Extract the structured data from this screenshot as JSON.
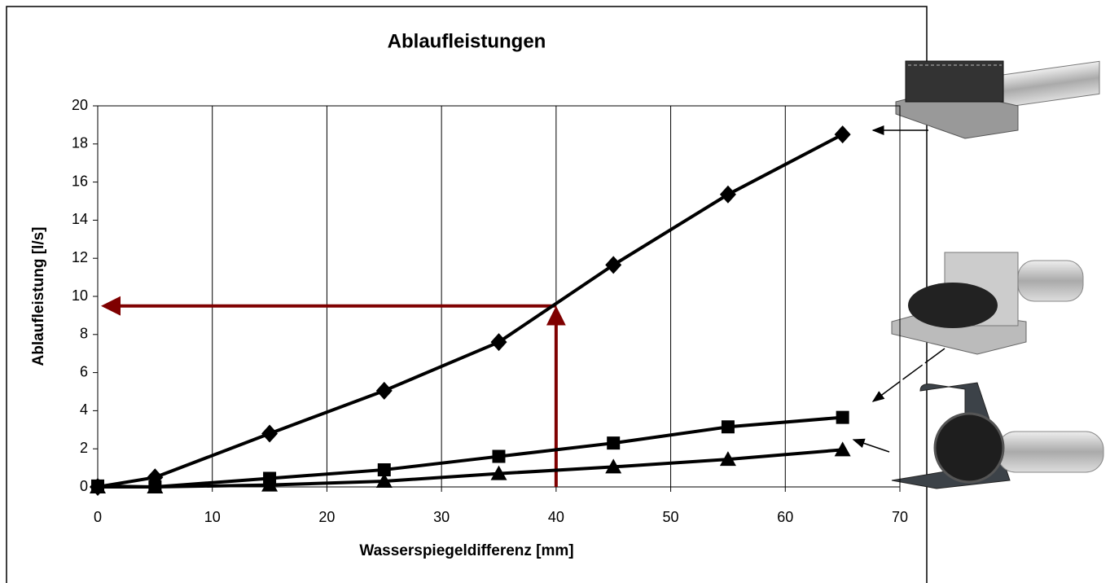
{
  "chart_data": {
    "type": "line",
    "title": "Ablaufleistungen",
    "x_label": "Wasserspiegeldifferenz [mm]",
    "y_label": "Ablaufleistung [l/s]",
    "x": [
      0,
      5,
      15,
      25,
      35,
      45,
      55,
      65
    ],
    "series": [
      {
        "color": "#000000",
        "marker": "diamond",
        "values": [
          0,
          0.5,
          2.8,
          5.05,
          7.6,
          11.65,
          15.35,
          18.5
        ]
      },
      {
        "color": "#000000",
        "marker": "square",
        "values": [
          0.05,
          0,
          0.45,
          0.9,
          1.6,
          2.3,
          3.15,
          3.65
        ]
      },
      {
        "color": "#000000",
        "marker": "triangle",
        "values": [
          0,
          0,
          0.1,
          0.3,
          0.7,
          1.05,
          1.45,
          1.95
        ]
      }
    ],
    "reading": {
      "x": 40,
      "y": 9.5,
      "color": "#7f0000"
    },
    "xlim": [
      0,
      70
    ],
    "xticks": [
      0,
      10,
      20,
      30,
      40,
      50,
      60,
      70
    ],
    "ylim": [
      0,
      20
    ],
    "yticks": [
      0,
      2,
      4,
      6,
      8,
      10,
      12,
      14,
      16,
      18,
      20
    ],
    "grid": "x"
  }
}
